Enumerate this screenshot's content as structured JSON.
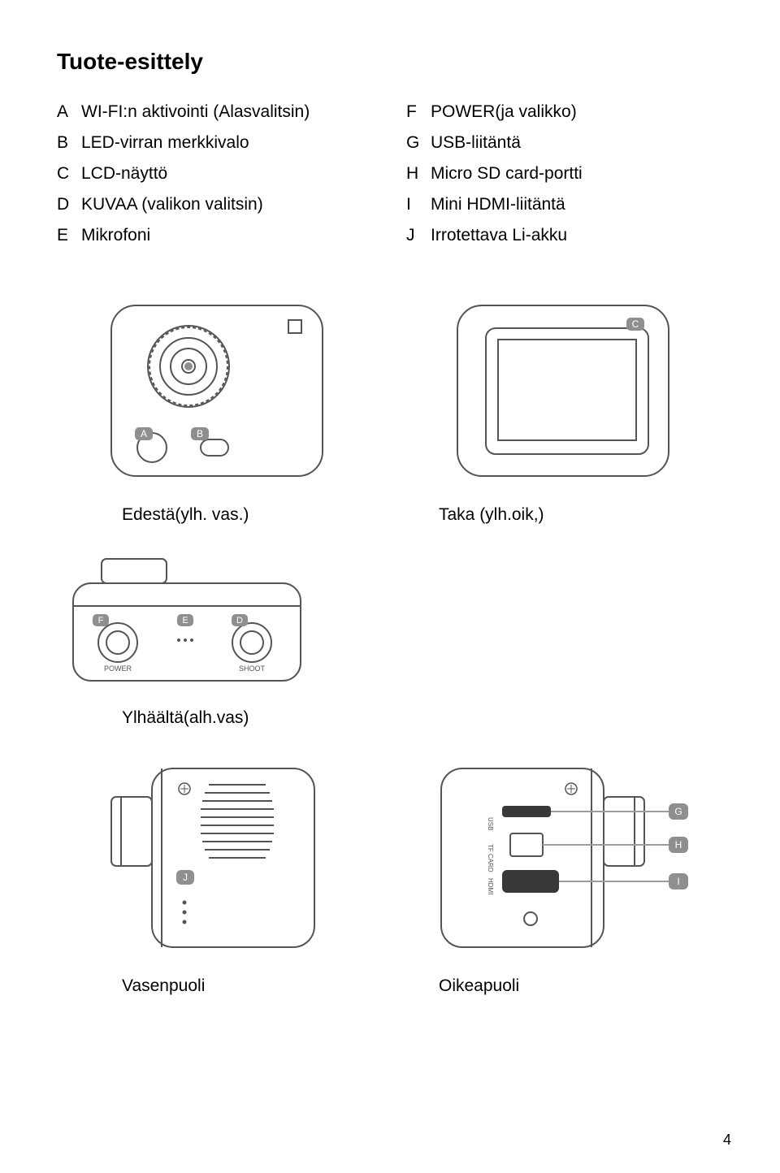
{
  "title": "Tuote-esittely",
  "defs_left": [
    {
      "letter": "A",
      "text": "WI-FI:n aktivointi (Alasvalitsin)"
    },
    {
      "letter": "B",
      "text": "LED-virran merkkivalo"
    },
    {
      "letter": "C",
      "text": "LCD-näyttö"
    },
    {
      "letter": "D",
      "text": "KUVAA (valikon valitsin)"
    },
    {
      "letter": "E",
      "text": "Mikrofoni"
    }
  ],
  "defs_right": [
    {
      "letter": "F",
      "text": "POWER(ja valikko)"
    },
    {
      "letter": "G",
      "text": "USB-liitäntä"
    },
    {
      "letter": "H",
      "text": "Micro SD card-portti"
    },
    {
      "letter": "I",
      "text": "Mini HDMI-liitäntä"
    },
    {
      "letter": "J",
      "text": "Irrotettava Li-akku"
    }
  ],
  "captions": {
    "front": "Edestä(ylh. vas.)",
    "back": "Taka (ylh.oik,)",
    "top": "Ylhäältä(alh.vas)",
    "left": "Vasenpuoli",
    "right": "Oikeapuoli"
  },
  "labels": {
    "A": "A",
    "B": "B",
    "C": "C",
    "D": "D",
    "E": "E",
    "F": "F",
    "G": "G",
    "H": "H",
    "I": "I",
    "J": "J",
    "power": "POWER",
    "shoot": "SHOOT",
    "usb": "USB",
    "tf": "TF CARD",
    "hdmi": "HDMI"
  },
  "colors": {
    "stroke": "#555555",
    "light": "#9c9c9c",
    "grey": "#7a7a7a",
    "badge": "#8f8f8f",
    "badgeText": "#ffffff"
  },
  "page": "4"
}
